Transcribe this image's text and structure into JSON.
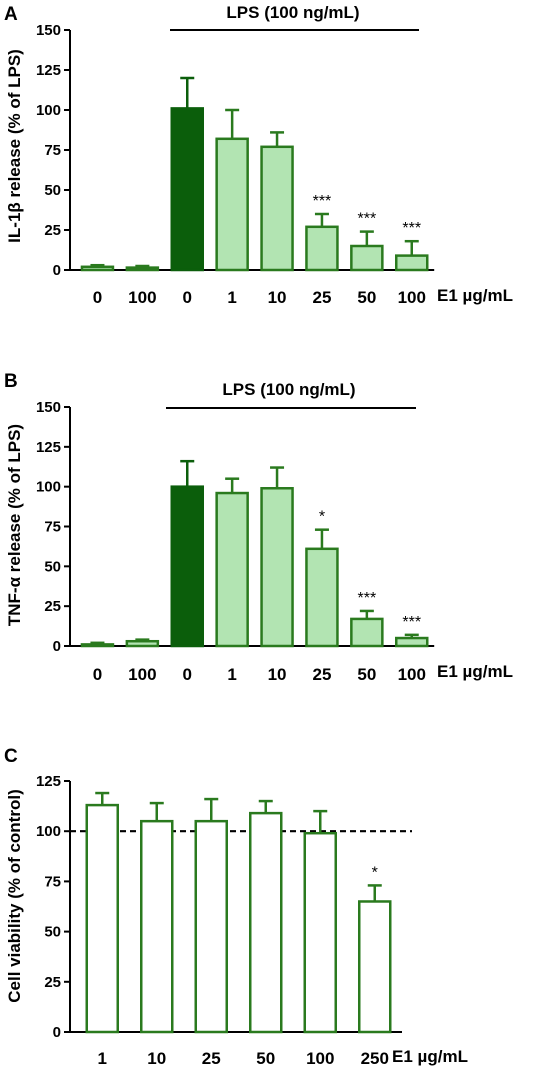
{
  "colors": {
    "dark_green": "#0b5e0b",
    "light_green": "#b2e4b2",
    "outline_green": "#2a7a1e",
    "white": "#ffffff"
  },
  "chart_data": [
    {
      "panel": "A",
      "type": "bar",
      "ylabel": "IL-1β release (% of LPS)",
      "xlabel_unit": "E1 µg/mL",
      "ylim": [
        0,
        150
      ],
      "yticks": [
        "0",
        "25",
        "50",
        "75",
        "100",
        "125",
        "150"
      ],
      "categories": [
        "0",
        "100",
        "0",
        "1",
        "10",
        "25",
        "50",
        "100"
      ],
      "values": [
        2,
        1.5,
        101,
        82,
        77,
        27,
        15,
        9
      ],
      "errors": [
        1,
        1,
        19,
        18,
        9,
        8,
        9,
        9
      ],
      "fills": [
        "light",
        "light",
        "dark",
        "light",
        "light",
        "light",
        "light",
        "light"
      ],
      "annotations": [
        "",
        "",
        "",
        "",
        "",
        "***",
        "***",
        "***"
      ],
      "bracket_label": "LPS (100 ng/mL)",
      "bracket_span": [
        2,
        7
      ]
    },
    {
      "panel": "B",
      "type": "bar",
      "ylabel": "TNF-α release (% of LPS)",
      "xlabel_unit": "E1 µg/mL",
      "ylim": [
        0,
        150
      ],
      "yticks": [
        "0",
        "25",
        "50",
        "75",
        "100",
        "125",
        "150"
      ],
      "categories": [
        "0",
        "100",
        "0",
        "1",
        "10",
        "25",
        "50",
        "100"
      ],
      "values": [
        1,
        3,
        100,
        96,
        99,
        61,
        17,
        5
      ],
      "errors": [
        1,
        1,
        16,
        9,
        13,
        12,
        5,
        2
      ],
      "fills": [
        "light",
        "light",
        "dark",
        "light",
        "light",
        "light",
        "light",
        "light"
      ],
      "annotations": [
        "",
        "",
        "",
        "",
        "",
        "*",
        "***",
        "***"
      ],
      "bracket_label": "LPS (100 ng/mL)",
      "bracket_span": [
        2,
        7
      ]
    },
    {
      "panel": "C",
      "type": "bar",
      "ylabel": "Cell viability (% of control)",
      "xlabel_unit": "E1 µg/mL",
      "ylim": [
        0,
        125
      ],
      "yticks": [
        "0",
        "25",
        "50",
        "75",
        "100",
        "125"
      ],
      "categories": [
        "1",
        "10",
        "25",
        "50",
        "100",
        "250"
      ],
      "values": [
        113,
        105,
        105,
        109,
        99,
        65
      ],
      "errors": [
        6,
        9,
        11,
        6,
        11,
        8
      ],
      "fills": [
        "white",
        "white",
        "white",
        "white",
        "white",
        "white"
      ],
      "annotations": [
        "",
        "",
        "",
        "",
        "",
        "*"
      ],
      "reference_line": 100,
      "reference_line_style": "dashed"
    }
  ]
}
